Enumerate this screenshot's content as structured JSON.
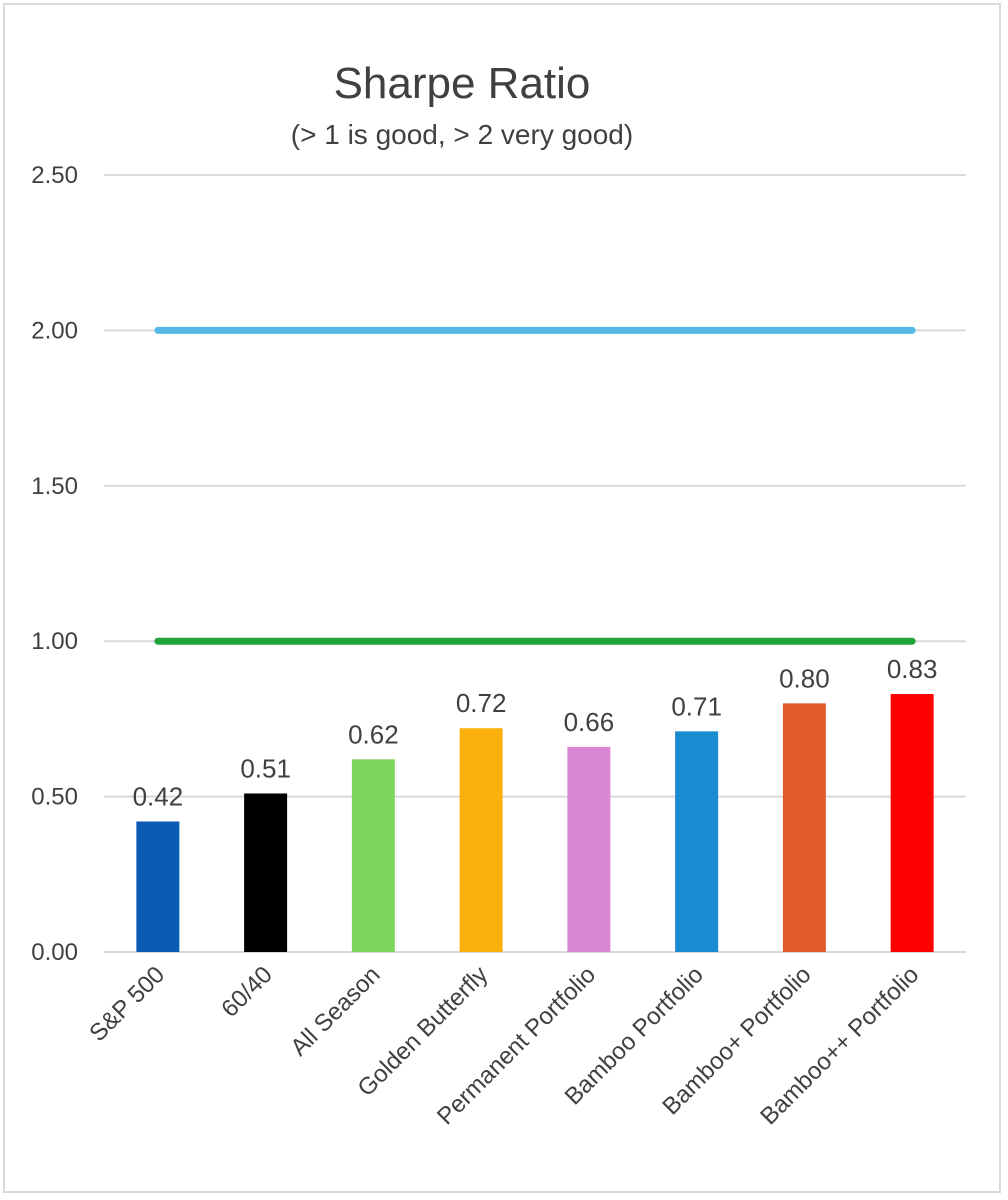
{
  "chart_data": {
    "type": "bar",
    "title": "Sharpe Ratio",
    "subtitle": "(> 1 is good, > 2 very good)",
    "categories": [
      "S&P 500",
      "60/40",
      "All Season",
      "Golden Butterfly",
      "Permanent Portfolio",
      "Bamboo Portfolio",
      "Bamboo+ Portfolio",
      "Bamboo++ Portfolio"
    ],
    "values": [
      0.42,
      0.51,
      0.62,
      0.72,
      0.66,
      0.71,
      0.8,
      0.83
    ],
    "data_labels": [
      "0.42",
      "0.51",
      "0.62",
      "0.72",
      "0.66",
      "0.71",
      "0.80",
      "0.83"
    ],
    "bar_colors": [
      "#0a5bb5",
      "#000000",
      "#7fd65f",
      "#fbb00e",
      "#da87d4",
      "#1a8bd0",
      "#e15a28",
      "#ff0000"
    ],
    "y_ticks": [
      0,
      0.5,
      1.0,
      1.5,
      2.0,
      2.5
    ],
    "y_tick_labels": [
      "0.00",
      "0.50",
      "1.00",
      "1.50",
      "2.00",
      "2.50"
    ],
    "ylim": [
      0,
      2.5
    ],
    "grid": true,
    "legend": "none",
    "reference_lines": [
      {
        "value": 2.0,
        "color": "#56b9e8"
      },
      {
        "value": 1.0,
        "color": "#1ea43a"
      }
    ]
  }
}
